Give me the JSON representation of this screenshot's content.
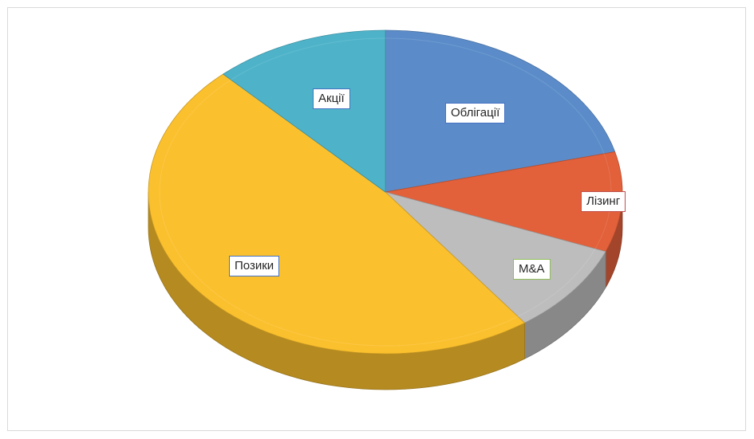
{
  "chart_data": {
    "type": "pie",
    "style": "3d",
    "title": "",
    "legend": "none",
    "categories": [
      "Облігації",
      "Лізинг",
      "M&A",
      "Позики",
      "Акції"
    ],
    "values": [
      21,
      10,
      9,
      48,
      12
    ],
    "units": "%",
    "colors": [
      "#5b8cc9",
      "#e2603a",
      "#bdbdbd",
      "#fbc02d",
      "#4eb3c9"
    ],
    "label_border_colors": [
      "#4472c4",
      "#c0504d",
      "#8fbc5a",
      "#4472c4",
      "#4472c4"
    ]
  }
}
